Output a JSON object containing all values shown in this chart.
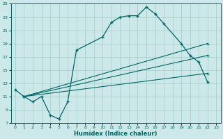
{
  "xlabel": "Humidex (Indice chaleur)",
  "xlim": [
    -0.5,
    23.5
  ],
  "ylim": [
    7,
    25
  ],
  "xticks": [
    0,
    1,
    2,
    3,
    4,
    5,
    6,
    7,
    8,
    9,
    10,
    11,
    12,
    13,
    14,
    15,
    16,
    17,
    18,
    19,
    20,
    21,
    22,
    23
  ],
  "yticks": [
    7,
    9,
    11,
    13,
    15,
    17,
    19,
    21,
    23,
    25
  ],
  "bg_color": "#cce8e8",
  "grid_color": "#aacece",
  "line_color": "#006666",
  "main_line": {
    "x": [
      0,
      1,
      2,
      3,
      4,
      5,
      6,
      7,
      10,
      11,
      12,
      13,
      14,
      15,
      16,
      17,
      19,
      20,
      21,
      22
    ],
    "y": [
      12.0,
      11.0,
      10.2,
      11.0,
      8.2,
      7.6,
      10.2,
      18.0,
      20.0,
      22.2,
      23.0,
      23.2,
      23.2,
      24.5,
      23.5,
      22.0,
      19.0,
      17.2,
      16.2,
      13.2
    ]
  },
  "ref_lines": [
    {
      "x": [
        1,
        22
      ],
      "y": [
        11.0,
        19.0
      ]
    },
    {
      "x": [
        1,
        22
      ],
      "y": [
        11.0,
        17.2
      ]
    },
    {
      "x": [
        1,
        22
      ],
      "y": [
        11.0,
        14.5
      ]
    }
  ]
}
